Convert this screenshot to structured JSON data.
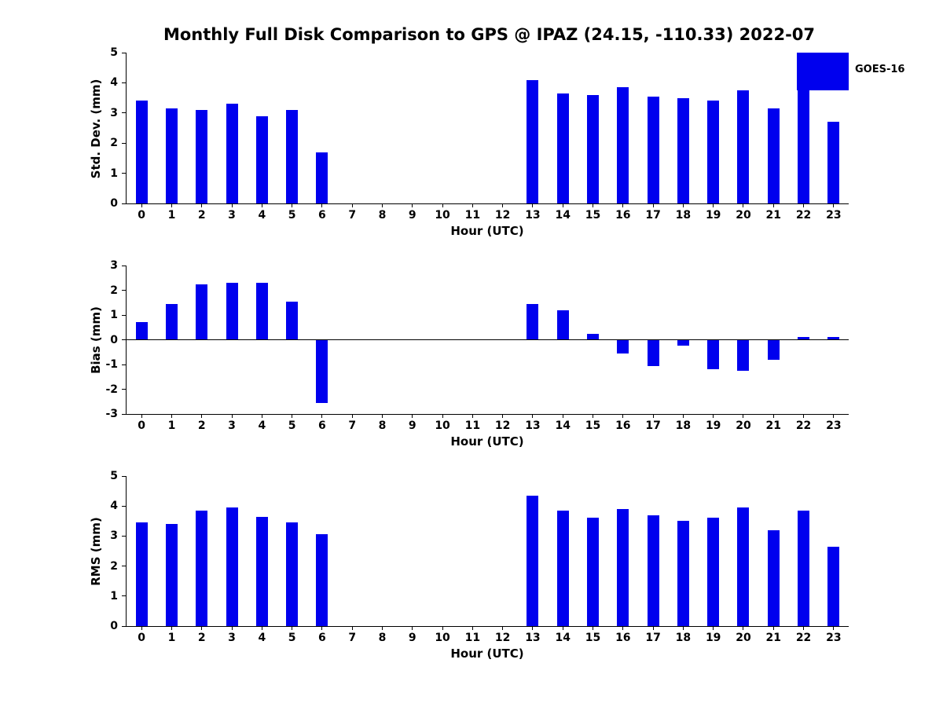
{
  "title": "Monthly Full Disk Comparison to GPS @ IPAZ (24.15, -110.33) 2022-07",
  "legend": {
    "label": "GOES-16",
    "color": "#0000ee"
  },
  "chart_data": [
    {
      "type": "bar",
      "title": "",
      "xlabel": "Hour (UTC)",
      "ylabel": "Std. Dev. (mm)",
      "series_name": "GOES-16",
      "bar_color": "#0000ee",
      "categories": [
        "0",
        "1",
        "2",
        "3",
        "4",
        "5",
        "6",
        "7",
        "8",
        "9",
        "10",
        "11",
        "12",
        "13",
        "14",
        "15",
        "16",
        "17",
        "18",
        "19",
        "20",
        "21",
        "22",
        "23"
      ],
      "values": [
        3.4,
        3.15,
        3.1,
        3.3,
        2.9,
        3.1,
        1.7,
        0,
        0,
        0,
        0,
        0,
        0,
        4.1,
        3.65,
        3.6,
        3.85,
        3.55,
        3.5,
        3.4,
        3.75,
        3.15,
        3.85,
        2.7
      ],
      "ylim": [
        0,
        5
      ],
      "yticks": [
        0,
        1,
        2,
        3,
        4,
        5
      ],
      "grid": false,
      "legend_position": "top-right"
    },
    {
      "type": "bar",
      "title": "",
      "xlabel": "Hour (UTC)",
      "ylabel": "Bias (mm)",
      "series_name": "GOES-16",
      "bar_color": "#0000ee",
      "categories": [
        "0",
        "1",
        "2",
        "3",
        "4",
        "5",
        "6",
        "7",
        "8",
        "9",
        "10",
        "11",
        "12",
        "13",
        "14",
        "15",
        "16",
        "17",
        "18",
        "19",
        "20",
        "21",
        "22",
        "23"
      ],
      "values": [
        0.7,
        1.45,
        2.25,
        2.3,
        2.3,
        1.55,
        -2.55,
        0,
        0,
        0,
        0,
        0,
        0,
        1.45,
        1.2,
        0.25,
        -0.55,
        -1.05,
        -0.25,
        -1.2,
        -1.25,
        -0.8,
        0.1,
        0.1
      ],
      "ylim": [
        -3,
        3
      ],
      "yticks": [
        -3,
        -2,
        -1,
        0,
        1,
        2,
        3
      ],
      "grid": false
    },
    {
      "type": "bar",
      "title": "",
      "xlabel": "Hour (UTC)",
      "ylabel": "RMS (mm)",
      "series_name": "GOES-16",
      "bar_color": "#0000ee",
      "categories": [
        "0",
        "1",
        "2",
        "3",
        "4",
        "5",
        "6",
        "7",
        "8",
        "9",
        "10",
        "11",
        "12",
        "13",
        "14",
        "15",
        "16",
        "17",
        "18",
        "19",
        "20",
        "21",
        "22",
        "23"
      ],
      "values": [
        3.45,
        3.4,
        3.85,
        3.95,
        3.65,
        3.45,
        3.05,
        0,
        0,
        0,
        0,
        0,
        0,
        4.35,
        3.85,
        3.6,
        3.9,
        3.7,
        3.5,
        3.6,
        3.95,
        3.2,
        3.85,
        2.65
      ],
      "ylim": [
        0,
        5
      ],
      "yticks": [
        0,
        1,
        2,
        3,
        4,
        5
      ],
      "grid": false
    }
  ]
}
